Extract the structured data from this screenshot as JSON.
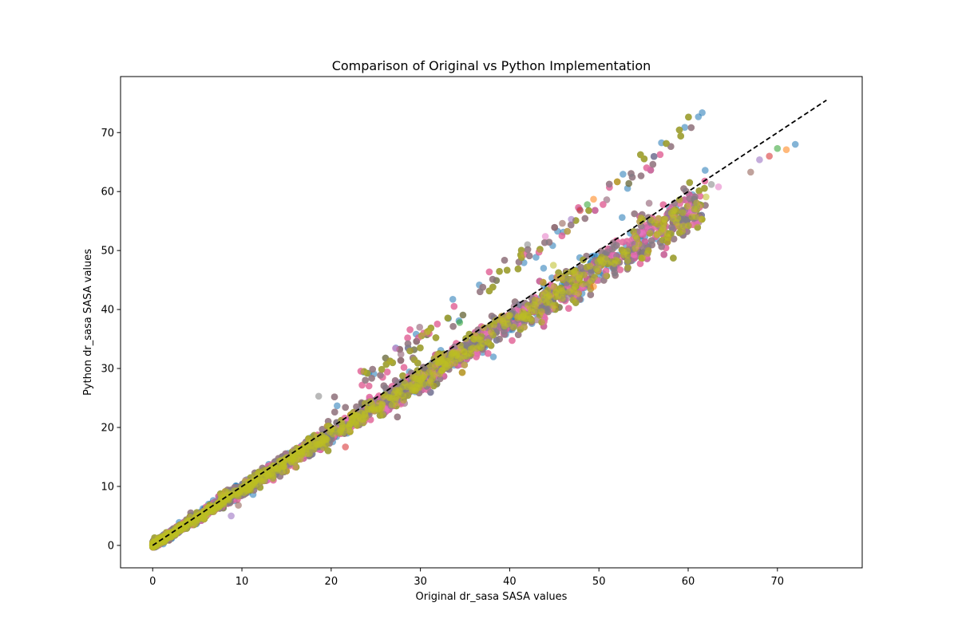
{
  "chart_data": {
    "type": "scatter",
    "title": "Comparison of Original vs Python Implementation",
    "xlabel": "Original dr_sasa SASA values",
    "ylabel": "Python dr_sasa SASA values",
    "xlim": [
      -3.6,
      79.5
    ],
    "ylim": [
      -3.8,
      79.5
    ],
    "xticks": [
      0,
      10,
      20,
      30,
      40,
      50,
      60,
      70
    ],
    "yticks": [
      0,
      10,
      20,
      30,
      40,
      50,
      60,
      70
    ],
    "grid": false,
    "legend": "none",
    "reference_line": {
      "style": "dashed",
      "color": "#000000",
      "x": [
        0,
        75.5
      ],
      "y": [
        0,
        75.5
      ]
    },
    "marker_alpha": 0.55,
    "series_colors": [
      "#1f77b4",
      "#ff7f0e",
      "#2ca02c",
      "#d62728",
      "#9467bd",
      "#8c564b",
      "#e377c2",
      "#7f7f7f",
      "#bcbd22"
    ],
    "points_per_series": 850,
    "highlighted_points": [
      {
        "x": 72.0,
        "y": 68.0
      },
      {
        "x": 71.0,
        "y": 67.1
      },
      {
        "x": 70.0,
        "y": 67.3
      },
      {
        "x": 69.1,
        "y": 66.0
      },
      {
        "x": 68.0,
        "y": 65.4
      },
      {
        "x": 67.0,
        "y": 63.3
      },
      {
        "x": 63.4,
        "y": 60.8
      },
      {
        "x": 62.6,
        "y": 61.2
      },
      {
        "x": 62.0,
        "y": 59.1
      },
      {
        "x": 52.6,
        "y": 55.6
      },
      {
        "x": 49.4,
        "y": 58.7
      },
      {
        "x": 48.7,
        "y": 57.8
      },
      {
        "x": 47.9,
        "y": 56.8
      },
      {
        "x": 46.9,
        "y": 55.3
      },
      {
        "x": 45.9,
        "y": 54.6
      },
      {
        "x": 44.0,
        "y": 52.4
      },
      {
        "x": 42.0,
        "y": 51.0
      },
      {
        "x": 44.9,
        "y": 47.5
      },
      {
        "x": 43.8,
        "y": 47.0
      },
      {
        "x": 49.4,
        "y": 43.9
      },
      {
        "x": 34.4,
        "y": 37.8
      },
      {
        "x": 21.6,
        "y": 16.7
      },
      {
        "x": 8.8,
        "y": 5.0
      },
      {
        "x": 9.6,
        "y": 6.8
      },
      {
        "x": 27.2,
        "y": 33.4
      },
      {
        "x": 18.6,
        "y": 25.3
      }
    ]
  }
}
